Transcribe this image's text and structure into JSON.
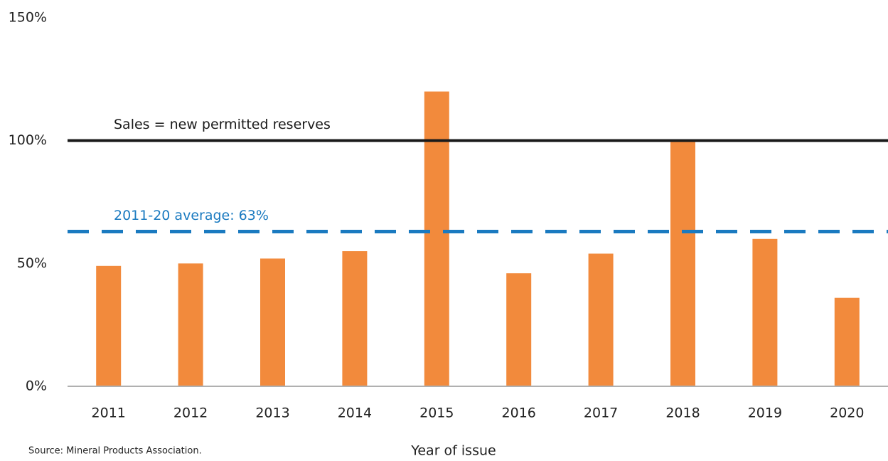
{
  "chart_data": {
    "type": "bar",
    "categories": [
      "2011",
      "2012",
      "2013",
      "2014",
      "2015",
      "2016",
      "2017",
      "2018",
      "2019",
      "2020"
    ],
    "values": [
      49,
      50,
      52,
      55,
      120,
      46,
      54,
      100,
      60,
      36
    ],
    "color": "#f28a3c",
    "ylim": [
      0,
      150
    ],
    "yticks": [
      {
        "value": 0,
        "label": "0%"
      },
      {
        "value": 50,
        "label": "50%"
      },
      {
        "value": 100,
        "label": "100%"
      },
      {
        "value": 150,
        "label": "150%"
      }
    ],
    "grid": false,
    "reference_lines": [
      {
        "label": "Sales = new permitted reserves",
        "value": 100,
        "color": "#1a1a1a",
        "style": "solid"
      },
      {
        "label": "2011-20 average: 63%",
        "value": 63,
        "color": "#1a7ac0",
        "style": "dashed"
      }
    ],
    "x_label": "Year of issue",
    "source": "Source: Mineral Products Association."
  }
}
